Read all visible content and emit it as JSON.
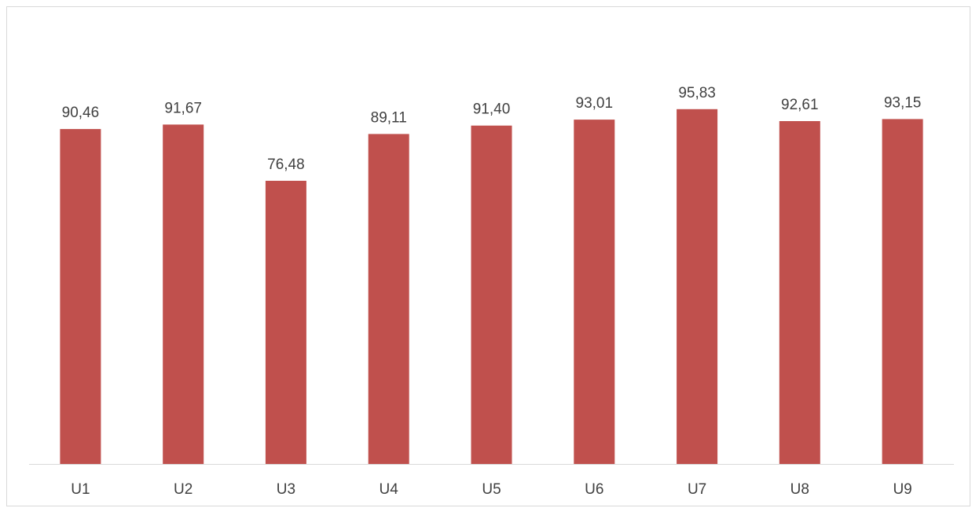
{
  "chart_data": {
    "type": "bar",
    "categories": [
      "U1",
      "U2",
      "U3",
      "U4",
      "U5",
      "U6",
      "U7",
      "U8",
      "U9"
    ],
    "values": [
      90.46,
      91.67,
      76.48,
      89.11,
      91.4,
      93.01,
      95.83,
      92.61,
      93.15
    ],
    "data_labels": [
      "90,46",
      "91,67",
      "76,48",
      "89,11",
      "91,40",
      "93,01",
      "95,83",
      "92,61",
      "93,15"
    ],
    "title": "",
    "xlabel": "",
    "ylabel": "",
    "ylim": [
      0,
      120
    ],
    "grid": false,
    "legend": "none",
    "bar_color": "#c0504d",
    "axis_color": "#d9d9d9",
    "text_color": "#404040"
  }
}
